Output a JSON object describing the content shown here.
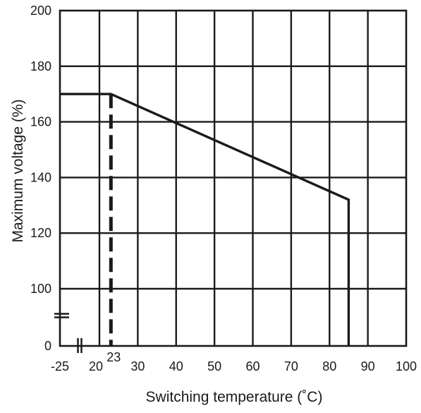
{
  "chart_data": {
    "type": "line",
    "title": "",
    "xlabel": "Switching temperature (˚C)",
    "ylabel": "Maximum voltage (%)",
    "x_axis_broken": true,
    "y_axis_broken": true,
    "x_ticks": [
      {
        "label": "-25",
        "value": -25
      },
      {
        "label": "20",
        "value": 20
      },
      {
        "label": "30",
        "value": 30
      },
      {
        "label": "40",
        "value": 40
      },
      {
        "label": "50",
        "value": 50
      },
      {
        "label": "60",
        "value": 60
      },
      {
        "label": "70",
        "value": 70
      },
      {
        "label": "80",
        "value": 80
      },
      {
        "label": "90",
        "value": 90
      },
      {
        "label": "100",
        "value": 100
      }
    ],
    "x_marker_label": {
      "label": "23",
      "value": 23
    },
    "y_ticks": [
      {
        "label": "0",
        "value": 0
      },
      {
        "label": "100",
        "value": 100
      },
      {
        "label": "120",
        "value": 120
      },
      {
        "label": "140",
        "value": 140
      },
      {
        "label": "160",
        "value": 160
      },
      {
        "label": "180",
        "value": 180
      },
      {
        "label": "200",
        "value": 200
      }
    ],
    "series": [
      {
        "style": "solid",
        "points": [
          {
            "x": -25,
            "y": 170
          },
          {
            "x": 23,
            "y": 170
          },
          {
            "x": 85,
            "y": 132
          },
          {
            "x": 85,
            "y": 0
          }
        ]
      }
    ],
    "reference_lines": [
      {
        "style": "dashed",
        "x": 23,
        "y_from": 0,
        "y_to": 170
      }
    ],
    "grid": true,
    "legend": "none"
  }
}
